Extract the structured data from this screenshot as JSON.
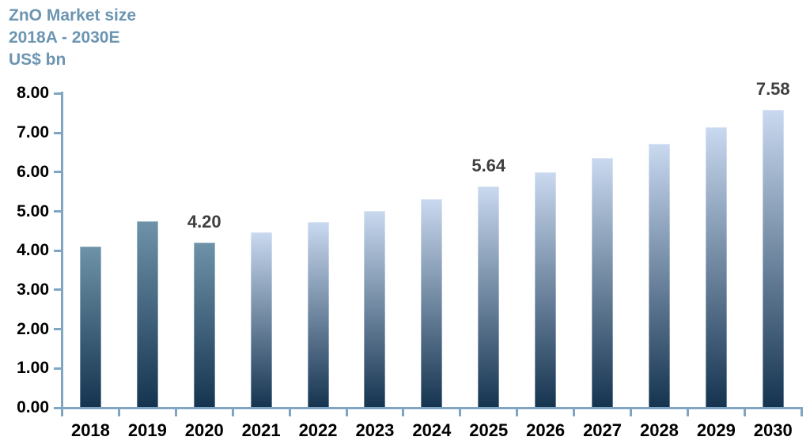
{
  "title": {
    "line1": "ZnO Market size",
    "line2": "2018A - 2030E",
    "line3": "US$ bn"
  },
  "chart_data": {
    "type": "bar",
    "title": "ZnO Market size 2018A - 2030E",
    "unit": "US$ bn",
    "categories": [
      "2018",
      "2019",
      "2020",
      "2021",
      "2022",
      "2023",
      "2024",
      "2025",
      "2026",
      "2027",
      "2028",
      "2029",
      "2030"
    ],
    "values": [
      4.1,
      4.75,
      4.2,
      4.46,
      4.73,
      5.01,
      5.31,
      5.64,
      5.99,
      6.35,
      6.73,
      7.15,
      7.58
    ],
    "bar_kind": [
      "actual",
      "actual",
      "actual",
      "estimate",
      "estimate",
      "estimate",
      "estimate",
      "estimate",
      "estimate",
      "estimate",
      "estimate",
      "estimate",
      "estimate"
    ],
    "data_labels": {
      "2020": "4.20",
      "2025": "5.64",
      "2030": "7.58"
    },
    "ylim": [
      0,
      8
    ],
    "ytick_step": 1,
    "ytick_labels": [
      "8.00",
      "7.00",
      "6.00",
      "5.00",
      "4.00",
      "3.00",
      "2.00",
      "1.00",
      "0.00"
    ],
    "xlabel": "",
    "ylabel": "",
    "grid": false,
    "legend": false
  },
  "colors": {
    "title_text": "#6C95B1",
    "axis_line": "#7FA5C3",
    "tick_label": "#000000",
    "value_label": "#3F3F3F",
    "bar_actual_top": "#6E93A8",
    "bar_estimate_top": "#C9D9F0",
    "bar_bottom": "#14334F"
  }
}
